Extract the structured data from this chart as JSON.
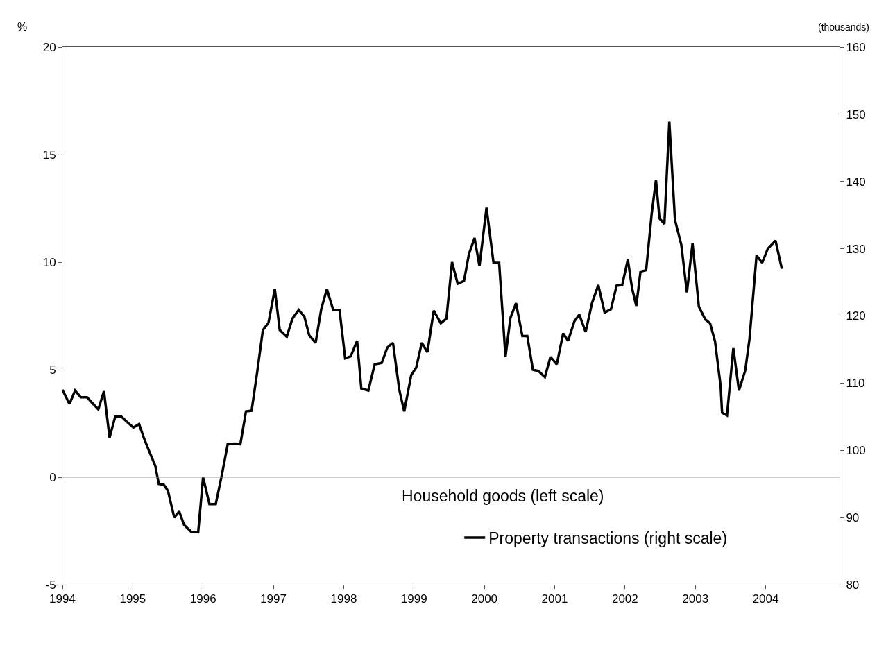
{
  "chart_data": {
    "type": "line",
    "ylabel": "%",
    "y2label": "(thousands)",
    "xlim": [
      1994,
      2005.05
    ],
    "xticks": [
      1994,
      1995,
      1996,
      1997,
      1998,
      1999,
      2000,
      2001,
      2002,
      2003,
      2004
    ],
    "ylim": [
      -5,
      20
    ],
    "yticks": [
      -5,
      0,
      5,
      10,
      15,
      20
    ],
    "y2lim": [
      80,
      160
    ],
    "y2ticks": [
      80,
      90,
      100,
      110,
      120,
      130,
      140,
      150,
      160
    ],
    "grid": false,
    "legend": "bottom right",
    "marker": "none",
    "line_style": "solid",
    "ref_lines": [
      {
        "axis": "y",
        "value": 0,
        "color": "#999999"
      }
    ],
    "annotations": [
      "Household goods (left scale)"
    ],
    "series": [
      {
        "name": "Property transactions (right scale)",
        "color": "#000000",
        "axis": "y2",
        "x": [
          1994.0,
          1994.1,
          1994.18,
          1994.26,
          1994.35,
          1994.42,
          1994.51,
          1994.59,
          1994.67,
          1994.75,
          1994.84,
          1994.92,
          1995.01,
          1995.09,
          1995.16,
          1995.24,
          1995.32,
          1995.37,
          1995.44,
          1995.5,
          1995.59,
          1995.66,
          1995.73,
          1995.83,
          1995.93,
          1996.0,
          1996.09,
          1996.18,
          1996.27,
          1996.35,
          1996.45,
          1996.53,
          1996.61,
          1996.69,
          1996.77,
          1996.85,
          1996.93,
          1997.02,
          1997.09,
          1997.19,
          1997.27,
          1997.36,
          1997.44,
          1997.51,
          1997.6,
          1997.68,
          1997.76,
          1997.85,
          1997.94,
          1998.02,
          1998.1,
          1998.19,
          1998.25,
          1998.35,
          1998.44,
          1998.54,
          1998.62,
          1998.7,
          1998.79,
          1998.86,
          1998.96,
          1999.03,
          1999.11,
          1999.19,
          1999.28,
          1999.38,
          1999.46,
          1999.54,
          1999.62,
          1999.71,
          1999.78,
          1999.86,
          1999.93,
          2000.03,
          2000.13,
          2000.21,
          2000.3,
          2000.37,
          2000.45,
          2000.54,
          2000.61,
          2000.69,
          2000.77,
          2000.86,
          2000.94,
          2001.03,
          2001.12,
          2001.19,
          2001.28,
          2001.35,
          2001.44,
          2001.53,
          2001.62,
          2001.71,
          2001.8,
          2001.88,
          2001.96,
          2002.04,
          2002.1,
          2002.16,
          2002.22,
          2002.3,
          2002.38,
          2002.44,
          2002.49,
          2002.56,
          2002.63,
          2002.71,
          2002.8,
          2002.88,
          2002.96,
          2003.05,
          2003.14,
          2003.21,
          2003.28,
          2003.36,
          2003.38,
          2003.45,
          2003.54,
          2003.62,
          2003.71,
          2003.77,
          2003.87,
          2003.95,
          2004.03,
          2004.14,
          2004.23
        ],
        "values": [
          109.0,
          106.9,
          108.9,
          107.9,
          107.9,
          107.1,
          106.1,
          108.8,
          101.9,
          105.0,
          105.0,
          104.2,
          103.4,
          103.9,
          101.8,
          99.7,
          97.7,
          95.0,
          94.9,
          94.0,
          90.0,
          90.9,
          88.9,
          87.9,
          87.8,
          96.0,
          92.0,
          92.0,
          96.5,
          100.9,
          101.0,
          100.9,
          105.8,
          105.9,
          111.7,
          117.9,
          119.0,
          124.0,
          117.9,
          116.9,
          119.6,
          120.9,
          119.9,
          117.1,
          116.0,
          121.0,
          124.0,
          120.9,
          120.9,
          113.7,
          114.0,
          116.3,
          109.2,
          108.9,
          112.8,
          113.0,
          115.3,
          116.0,
          109.0,
          105.8,
          111.2,
          112.3,
          116.0,
          114.6,
          120.8,
          118.9,
          119.6,
          128.0,
          124.8,
          125.2,
          129.2,
          131.6,
          127.4,
          136.1,
          127.9,
          127.9,
          113.9,
          119.7,
          121.9,
          117.0,
          117.0,
          112.0,
          111.8,
          110.9,
          113.9,
          112.8,
          117.4,
          116.3,
          119.2,
          120.2,
          117.6,
          121.9,
          124.6,
          120.5,
          121.0,
          124.5,
          124.6,
          128.4,
          124.1,
          121.5,
          126.6,
          126.8,
          135.3,
          140.2,
          134.5,
          133.7,
          148.9,
          134.3,
          130.6,
          123.5,
          130.8,
          121.4,
          119.5,
          118.9,
          116.2,
          109.5,
          105.6,
          105.2,
          115.2,
          108.9,
          111.9,
          116.6,
          129.0,
          127.9,
          130.0,
          131.2,
          127.0
        ]
      }
    ]
  }
}
